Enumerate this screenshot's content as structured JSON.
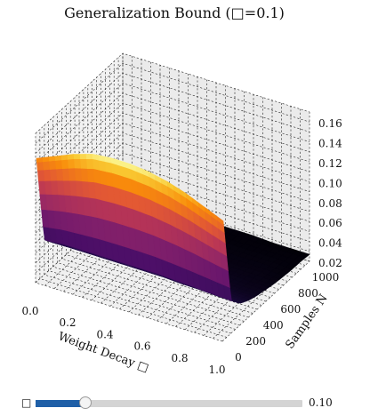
{
  "chart_data": {
    "type": "surface3d",
    "title": "Generalization Bound (□=0.1)",
    "xlabel": "Weight Decay □",
    "ylabel": "Samples N",
    "zlabel": "",
    "xlim": [
      0.0,
      1.0
    ],
    "ylim": [
      0,
      1000
    ],
    "zlim": [
      0.02,
      0.17
    ],
    "x_ticks": [
      "0.0",
      "0.2",
      "0.4",
      "0.6",
      "0.8",
      "1.0"
    ],
    "y_ticks": [
      "0",
      "200",
      "400",
      "600",
      "800",
      "1000"
    ],
    "z_ticks": [
      "0.02",
      "0.04",
      "0.06",
      "0.08",
      "0.10",
      "0.12",
      "0.14",
      "0.16"
    ],
    "colormap": "inferno",
    "grid": true,
    "x": [
      0.0,
      0.1,
      0.2,
      0.3,
      0.4,
      0.5,
      0.6,
      0.7,
      0.8,
      0.9,
      1.0
    ],
    "y": [
      10,
      100,
      200,
      300,
      400,
      500,
      600,
      700,
      800,
      900,
      1000
    ],
    "z": [
      [
        0.144,
        0.152,
        0.16,
        0.166,
        0.168,
        0.168,
        0.166,
        0.162,
        0.156,
        0.148,
        0.14
      ],
      [
        0.055,
        0.057,
        0.057,
        0.057,
        0.057,
        0.057,
        0.057,
        0.056,
        0.055,
        0.054,
        0.053
      ],
      [
        0.044,
        0.044,
        0.044,
        0.044,
        0.044,
        0.044,
        0.044,
        0.043,
        0.043,
        0.042,
        0.042
      ],
      [
        0.038,
        0.039,
        0.039,
        0.039,
        0.039,
        0.039,
        0.038,
        0.038,
        0.038,
        0.038,
        0.037
      ],
      [
        0.035,
        0.035,
        0.036,
        0.036,
        0.036,
        0.035,
        0.035,
        0.035,
        0.035,
        0.034,
        0.034
      ],
      [
        0.033,
        0.033,
        0.034,
        0.034,
        0.034,
        0.033,
        0.033,
        0.033,
        0.033,
        0.032,
        0.032
      ],
      [
        0.031,
        0.032,
        0.032,
        0.032,
        0.032,
        0.032,
        0.031,
        0.031,
        0.031,
        0.031,
        0.03
      ],
      [
        0.03,
        0.031,
        0.031,
        0.031,
        0.031,
        0.031,
        0.03,
        0.03,
        0.03,
        0.03,
        0.029
      ],
      [
        0.029,
        0.03,
        0.03,
        0.03,
        0.03,
        0.03,
        0.029,
        0.029,
        0.029,
        0.029,
        0.028
      ],
      [
        0.028,
        0.029,
        0.029,
        0.029,
        0.029,
        0.029,
        0.028,
        0.028,
        0.028,
        0.028,
        0.028
      ],
      [
        0.028,
        0.028,
        0.028,
        0.028,
        0.028,
        0.028,
        0.028,
        0.028,
        0.027,
        0.027,
        0.027
      ]
    ]
  },
  "slider": {
    "symbol": "□",
    "value": 0.1,
    "value_label": "0.10",
    "min": 0.0,
    "max": 1.0,
    "fill_color": "#1f5fa7",
    "track_color": "#d4d4d4"
  }
}
